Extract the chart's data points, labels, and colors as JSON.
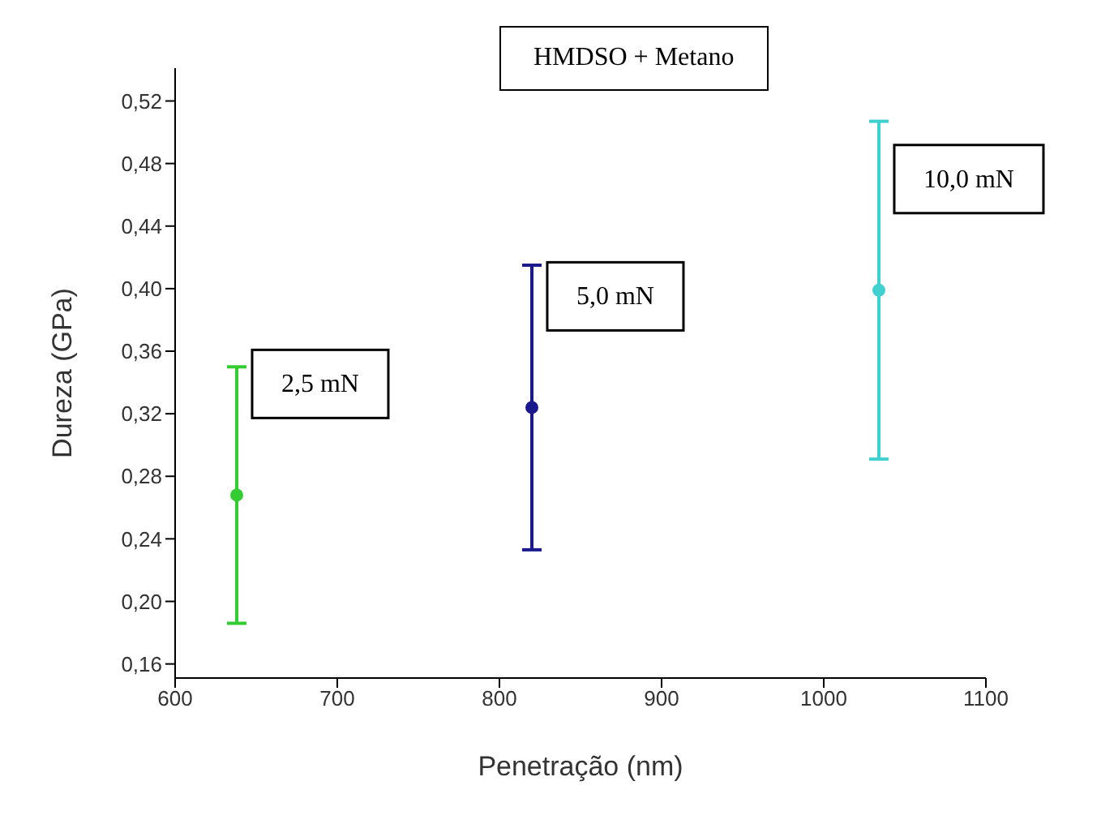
{
  "chart_data": {
    "type": "scatter",
    "title": "HMDSO + Metano",
    "xlabel": "Penetração (nm)",
    "ylabel": "Dureza (GPa)",
    "xlim": [
      600,
      1100
    ],
    "xticks": [
      600,
      700,
      800,
      900,
      1000,
      1100
    ],
    "ylim": [
      0.151,
      0.541
    ],
    "yticks": [
      {
        "value": 0.16,
        "label": "0,16"
      },
      {
        "value": 0.2,
        "label": "0,20"
      },
      {
        "value": 0.24,
        "label": "0,24"
      },
      {
        "value": 0.28,
        "label": "0,28"
      },
      {
        "value": 0.32,
        "label": "0,32"
      },
      {
        "value": 0.36,
        "label": "0,36"
      },
      {
        "value": 0.4,
        "label": "0,40"
      },
      {
        "value": 0.44,
        "label": "0,44"
      },
      {
        "value": 0.48,
        "label": "0,48"
      },
      {
        "value": 0.52,
        "label": "0,52"
      }
    ],
    "marker": "circle",
    "grid": false,
    "legend": false,
    "series": [
      {
        "name": "2,5 mN",
        "color": "#33cc33",
        "x": [
          638
        ],
        "values": [
          0.268
        ],
        "errors": [
          0.082
        ]
      },
      {
        "name": "5,0 mN",
        "color": "#1a1a8c",
        "x": [
          820
        ],
        "values": [
          0.324
        ],
        "errors": [
          0.091
        ]
      },
      {
        "name": "10,0 mN",
        "color": "#40d0d0",
        "x": [
          1034
        ],
        "values": [
          0.399
        ],
        "errors": [
          0.108
        ]
      }
    ]
  }
}
